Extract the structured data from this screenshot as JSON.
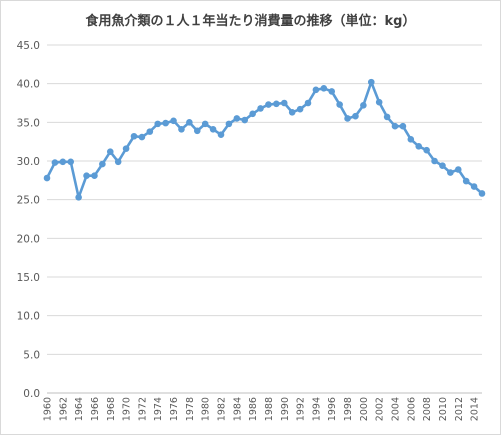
{
  "chart_data": {
    "type": "line",
    "title": "食用魚介類の１人１年当たり消費量の推移（単位：kg）",
    "xlabel": "",
    "ylabel": "",
    "ylim": [
      0,
      45
    ],
    "yticks": [
      "0.0",
      "5.0",
      "10.0",
      "15.0",
      "20.0",
      "25.0",
      "30.0",
      "35.0",
      "40.0",
      "45.0"
    ],
    "grid": true,
    "legend": "none",
    "line_color": "#5b9bd5",
    "x": [
      1960,
      1961,
      1962,
      1963,
      1964,
      1965,
      1966,
      1967,
      1968,
      1969,
      1970,
      1971,
      1972,
      1973,
      1974,
      1975,
      1976,
      1977,
      1978,
      1979,
      1980,
      1981,
      1982,
      1983,
      1984,
      1985,
      1986,
      1987,
      1988,
      1989,
      1990,
      1991,
      1992,
      1993,
      1994,
      1995,
      1996,
      1997,
      1998,
      1999,
      2000,
      2001,
      2002,
      2003,
      2004,
      2005,
      2006,
      2007,
      2008,
      2009,
      2010,
      2011,
      2012,
      2013,
      2014,
      2015
    ],
    "xtick_labels": [
      "1960",
      "1962",
      "1964",
      "1966",
      "1968",
      "1970",
      "1972",
      "1974",
      "1976",
      "1978",
      "1980",
      "1982",
      "1984",
      "1986",
      "1988",
      "1990",
      "1992",
      "1994",
      "1996",
      "1998",
      "2000",
      "2002",
      "2004",
      "2006",
      "2008",
      "2010",
      "2012",
      "2014"
    ],
    "values": [
      27.8,
      29.8,
      29.9,
      29.9,
      25.3,
      28.1,
      28.1,
      29.6,
      31.2,
      29.9,
      31.6,
      33.2,
      33.1,
      33.8,
      34.8,
      34.9,
      35.2,
      34.1,
      35.0,
      33.9,
      34.8,
      34.1,
      33.4,
      34.8,
      35.5,
      35.3,
      36.1,
      36.8,
      37.3,
      37.4,
      37.5,
      36.3,
      36.7,
      37.5,
      39.2,
      39.4,
      39.0,
      37.3,
      35.5,
      35.8,
      37.2,
      40.2,
      37.6,
      35.7,
      34.5,
      34.5,
      32.8,
      31.9,
      31.4,
      30.0,
      29.4,
      28.5,
      28.9,
      27.4,
      26.7,
      25.8
    ]
  }
}
